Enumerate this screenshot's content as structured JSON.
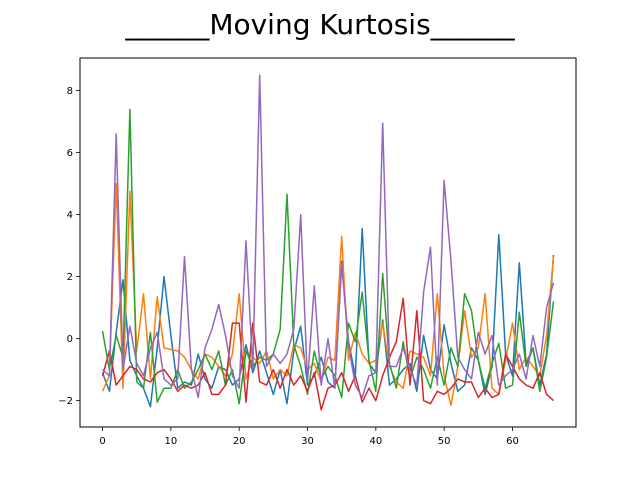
{
  "chart_data": {
    "type": "line",
    "title": "______Moving Kurtosis______",
    "xlabel": "",
    "ylabel": "",
    "xlim": [
      -3.3,
      69.3
    ],
    "ylim": [
      -2.85,
      9.05
    ],
    "xticks": [
      0,
      10,
      20,
      30,
      40,
      50,
      60
    ],
    "yticks": [
      -2,
      0,
      2,
      4,
      6,
      8
    ],
    "grid": false,
    "legend": false,
    "x": [
      0,
      1,
      2,
      3,
      4,
      5,
      6,
      7,
      8,
      9,
      10,
      11,
      12,
      13,
      14,
      15,
      16,
      17,
      18,
      19,
      20,
      21,
      22,
      23,
      24,
      25,
      26,
      27,
      28,
      29,
      30,
      31,
      32,
      33,
      34,
      35,
      36,
      37,
      38,
      39,
      40,
      41,
      42,
      43,
      44,
      45,
      46,
      47,
      48,
      49,
      50,
      51,
      52,
      53,
      54,
      55,
      56,
      57,
      58,
      59,
      60,
      61,
      62,
      63,
      64,
      65,
      66
    ],
    "series": [
      {
        "color": "#1f77b4",
        "values": [
          -1.1,
          -1.7,
          0.2,
          1.9,
          -0.7,
          -1.2,
          -1.6,
          -2.2,
          -0.3,
          2.0,
          0.1,
          -1.6,
          -1.4,
          -1.5,
          -0.5,
          -1.3,
          -1.6,
          -0.9,
          -1.0,
          -1.5,
          -1.3,
          -0.2,
          -1.1,
          -0.4,
          -1.1,
          -1.8,
          -1.0,
          -2.1,
          -0.4,
          0.4,
          -1.5,
          -1.2,
          -0.6,
          -1.4,
          -1.6,
          2.5,
          -0.1,
          -1.2,
          3.55,
          -0.8,
          -1.1,
          0.6,
          -1.5,
          -1.3,
          -1.0,
          -0.8,
          -1.7,
          0.1,
          -1.0,
          -1.3,
          0.45,
          -0.8,
          -1.7,
          -1.5,
          -0.3,
          -0.7,
          -1.8,
          -0.9,
          3.35,
          -0.5,
          -1.2,
          2.45,
          -0.8,
          -0.3,
          -1.5,
          -0.5,
          2.7
        ]
      },
      {
        "color": "#ff7f0e",
        "values": [
          -1.7,
          -1.2,
          5.0,
          -1.6,
          4.75,
          -0.4,
          1.45,
          -1.3,
          1.35,
          -0.3,
          -0.35,
          -0.4,
          -0.6,
          -1.0,
          -1.3,
          -0.5,
          -0.6,
          -0.9,
          -1.2,
          -0.5,
          1.45,
          -1.3,
          -0.6,
          -0.8,
          -0.4,
          -1.3,
          -1.0,
          -1.2,
          -0.2,
          -0.3,
          -1.0,
          -0.8,
          -1.4,
          -0.6,
          -0.7,
          3.3,
          -0.7,
          0.2,
          -0.5,
          -0.8,
          -0.7,
          0.5,
          -0.9,
          -1.4,
          -1.6,
          -0.4,
          -0.5,
          -0.6,
          -1.2,
          1.45,
          -1.2,
          -2.15,
          -0.9,
          0.9,
          -0.6,
          -0.3,
          1.45,
          -1.6,
          -1.8,
          -0.7,
          0.5,
          -1.0,
          -0.6,
          -0.9,
          -1.2,
          0.1,
          2.65
        ]
      },
      {
        "color": "#2ca02c",
        "values": [
          0.25,
          -1.0,
          0.1,
          -0.6,
          7.4,
          -1.4,
          -1.6,
          0.2,
          -2.05,
          -1.6,
          -1.6,
          -1.0,
          -1.6,
          -1.4,
          -1.0,
          -0.5,
          -1.0,
          -0.4,
          -1.5,
          -1.0,
          -2.1,
          -0.4,
          -0.9,
          -0.6,
          -0.7,
          -0.5,
          0.3,
          4.65,
          -0.2,
          -0.9,
          -1.8,
          -0.4,
          -1.3,
          -0.9,
          -1.2,
          -1.9,
          0.5,
          -0.1,
          1.5,
          -0.7,
          -1.7,
          2.1,
          -0.8,
          -1.6,
          -0.1,
          -1.3,
          -0.6,
          -1.0,
          -1.6,
          -0.6,
          -1.5,
          -0.3,
          -0.9,
          1.45,
          0.9,
          -0.7,
          -1.6,
          -0.8,
          -0.15,
          -1.6,
          -1.5,
          0.85,
          -0.9,
          -0.3,
          -1.7,
          -0.6,
          1.2
        ]
      },
      {
        "color": "#d62728",
        "values": [
          -1.2,
          -0.4,
          -1.5,
          -1.2,
          -0.9,
          -1.0,
          -1.3,
          -1.4,
          -1.1,
          -1.0,
          -1.3,
          -1.7,
          -1.5,
          -1.6,
          -1.5,
          -1.1,
          -1.8,
          -1.8,
          -1.5,
          0.5,
          0.5,
          -2.05,
          0.5,
          -1.4,
          -1.5,
          -1.0,
          -1.6,
          -1.0,
          -1.5,
          -1.2,
          -1.7,
          -1.1,
          -2.3,
          -1.6,
          -1.5,
          -1.1,
          -1.7,
          -1.2,
          -2.05,
          -1.6,
          -2.0,
          -1.2,
          -0.6,
          -0.1,
          1.3,
          -1.5,
          0.9,
          -2.0,
          -2.1,
          -1.7,
          -1.8,
          -1.6,
          -1.3,
          -1.4,
          -1.4,
          -1.9,
          -1.6,
          -1.9,
          -1.8,
          -0.5,
          -0.9,
          -1.3,
          -1.5,
          -1.6,
          -1.1,
          -1.8,
          -2.0
        ]
      },
      {
        "color": "#9467bd",
        "values": [
          -1.0,
          -1.2,
          6.6,
          -1.0,
          0.4,
          -0.8,
          -1.2,
          -0.3,
          0.2,
          -1.3,
          -1.5,
          -1.3,
          2.65,
          -1.0,
          -1.9,
          -0.3,
          0.3,
          1.1,
          0.1,
          -1.2,
          -1.6,
          3.15,
          -1.0,
          8.5,
          -0.9,
          -0.5,
          -0.8,
          -0.5,
          0.3,
          4.0,
          -1.4,
          1.7,
          -1.5,
          0.0,
          -1.6,
          2.4,
          -0.2,
          -1.5,
          -1.9,
          -1.2,
          -1.1,
          6.95,
          -0.9,
          -0.9,
          -0.3,
          -1.0,
          -1.5,
          1.5,
          2.95,
          -1.5,
          5.1,
          2.5,
          -0.6,
          -1.0,
          -1.3,
          0.2,
          -0.5,
          0.1,
          -1.5,
          -1.2,
          -1.0,
          -0.5,
          -1.3,
          0.1,
          -0.9,
          1.0,
          1.8
        ]
      }
    ]
  }
}
